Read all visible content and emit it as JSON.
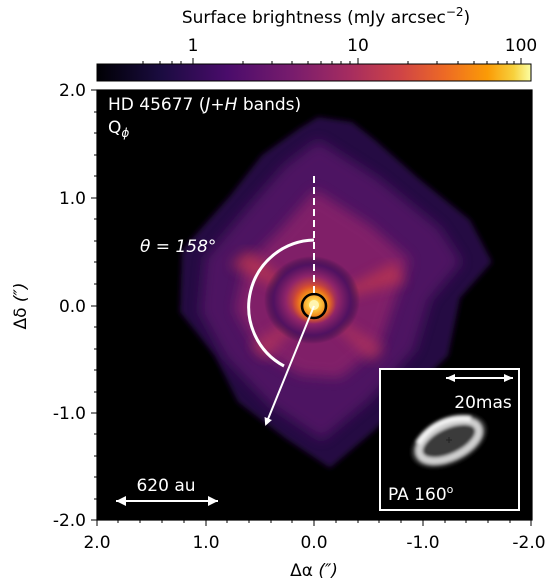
{
  "colorbar": {
    "label_prefix": "Surface brightness (mJy arcsec",
    "label_exp": "−2",
    "label_suffix": ")",
    "ticks": [
      "1",
      "10",
      "100"
    ],
    "scale": "log",
    "cmap": "inferno"
  },
  "panel": {
    "title_prefix": "HD 45677 (",
    "title_j": "J",
    "title_plus": "+",
    "title_h": "H",
    "title_suffix": " bands)",
    "sub_main": "Q",
    "sub_sub": "ϕ",
    "theta_label": "θ = 158°",
    "theta_value_deg": 158,
    "scalebar_label": "620 au"
  },
  "axes": {
    "xlabel_main": "Δα",
    "ylabel_main": "Δδ",
    "unit": "(″)",
    "x_ticks": [
      "2.0",
      "1.0",
      "0.0",
      "-1.0",
      "-2.0"
    ],
    "y_ticks": [
      "2.0",
      "1.0",
      "0.0",
      "-1.0",
      "-2.0"
    ],
    "xlim": [
      2.0,
      -2.0
    ],
    "ylim": [
      -2.0,
      2.0
    ]
  },
  "inset": {
    "scalebar_label": "20mas",
    "pa_label": "PA 160",
    "pa_degree": "o"
  },
  "colors": {
    "background": "#000000",
    "inset_border": "#ffffff",
    "annotation": "#ffffff"
  }
}
